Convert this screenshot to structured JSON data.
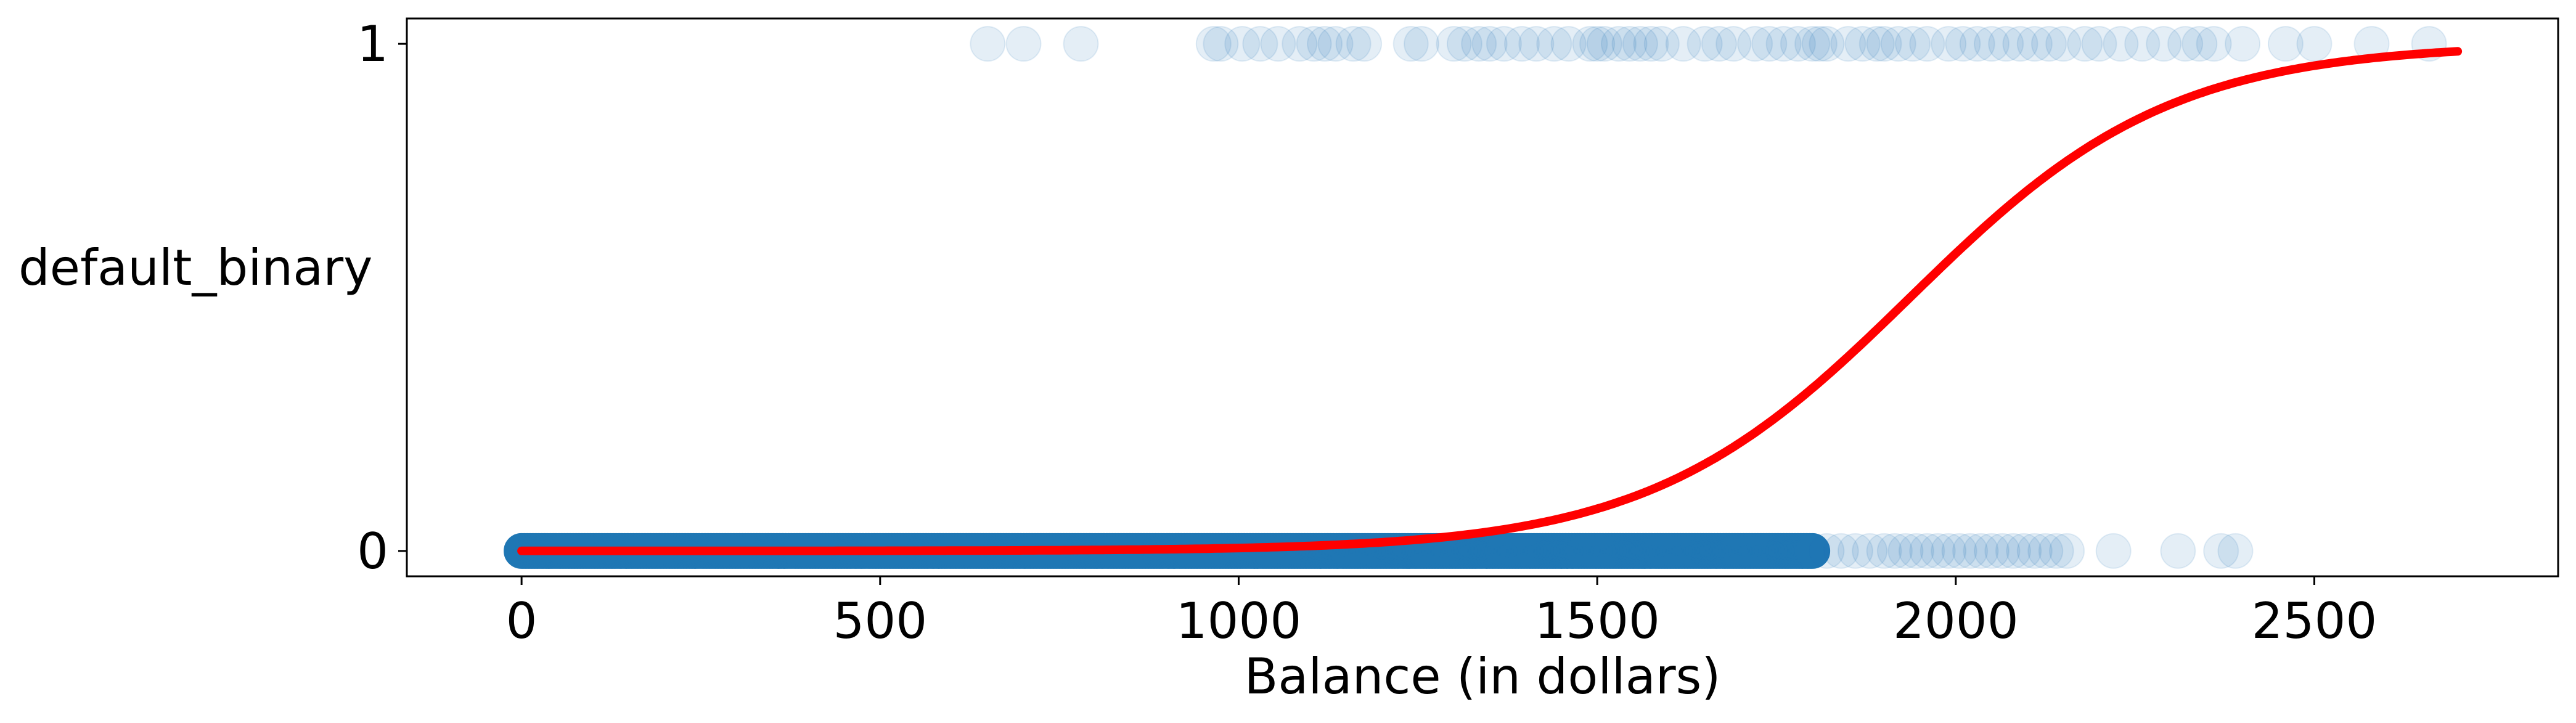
{
  "chart_data": {
    "type": "scatter",
    "title": "",
    "xlabel": "Balance (in dollars)",
    "ylabel": "default_binary",
    "xlim": [
      -160,
      2840
    ],
    "ylim": [
      -0.05,
      1.05
    ],
    "xticks": [
      0,
      500,
      1000,
      1500,
      2000,
      2500
    ],
    "yticks": [
      0,
      1
    ],
    "grid": false,
    "legend": "none",
    "colors": {
      "points": "#1f77b4",
      "curve": "#ff0000"
    },
    "series": [
      {
        "type": "scatter",
        "y": 1,
        "opacity": 0.12,
        "x": [
          650,
          700,
          780,
          965,
          975,
          1005,
          1030,
          1055,
          1085,
          1105,
          1120,
          1135,
          1160,
          1175,
          1240,
          1255,
          1300,
          1315,
          1335,
          1350,
          1370,
          1395,
          1415,
          1440,
          1460,
          1490,
          1500,
          1510,
          1530,
          1545,
          1560,
          1575,
          1590,
          1620,
          1650,
          1670,
          1690,
          1720,
          1740,
          1760,
          1780,
          1800,
          1810,
          1820,
          1850,
          1870,
          1890,
          1900,
          1920,
          1940,
          1960,
          1990,
          2010,
          2030,
          2050,
          2070,
          2090,
          2110,
          2130,
          2150,
          2180,
          2200,
          2230,
          2260,
          2290,
          2320,
          2340,
          2360,
          2400,
          2460,
          2500,
          2580,
          2660
        ]
      },
      {
        "type": "scatter",
        "y": 0,
        "opacity": 0.12,
        "x_dense_range": [
          0,
          1800
        ],
        "x": [
          1820,
          1840,
          1860,
          1880,
          1900,
          1915,
          1930,
          1945,
          1960,
          1975,
          1990,
          2005,
          2020,
          2035,
          2050,
          2065,
          2080,
          2095,
          2110,
          2125,
          2140,
          2155,
          2220,
          2310,
          2370,
          2390
        ]
      },
      {
        "type": "line",
        "name": "",
        "model": "logistic",
        "intercept": -10.65,
        "slope": 0.0055,
        "x_range": [
          0,
          2700
        ]
      }
    ]
  }
}
